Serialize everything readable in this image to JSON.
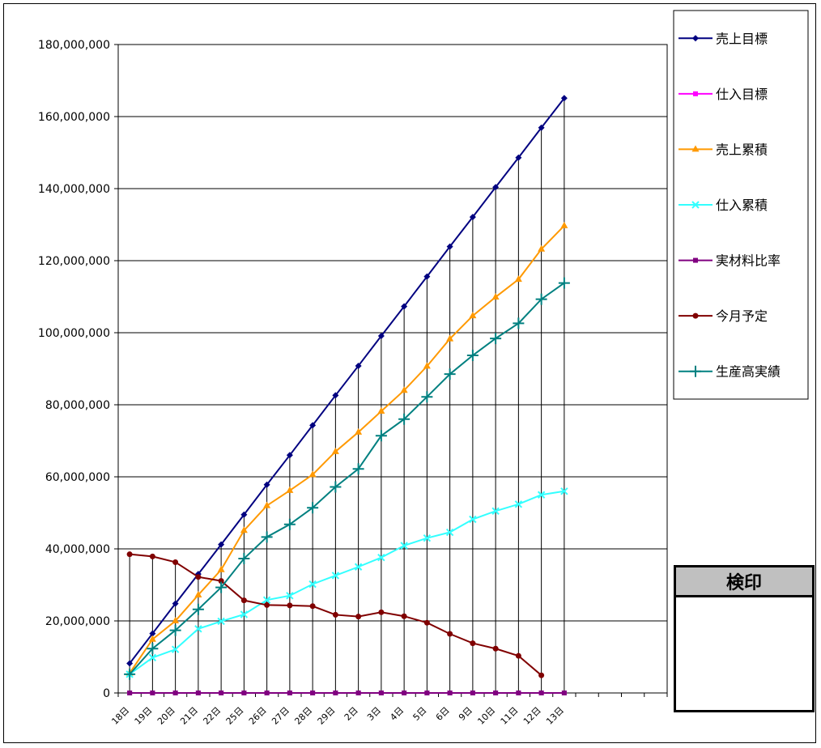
{
  "chart_data": {
    "type": "line",
    "categories": [
      "18日",
      "19日",
      "20日",
      "21日",
      "22日",
      "25日",
      "26日",
      "27日",
      "28日",
      "29日",
      "2日",
      "3日",
      "4日",
      "5日",
      "6日",
      "9日",
      "10日",
      "11日",
      "12日",
      "13日"
    ],
    "y_ticks": [
      "0",
      "20,000,000",
      "40,000,000",
      "60,000,000",
      "80,000,000",
      "100,000,000",
      "120,000,000",
      "140,000,000",
      "160,000,000",
      "180,000,000"
    ],
    "ylim": [
      0,
      180000000
    ],
    "grid": true,
    "legend_position": "right",
    "series": [
      {
        "name": "売上目標",
        "color": "#000080",
        "marker": "diamond",
        "values": [
          8200000,
          16500000,
          24800000,
          33000000,
          41200000,
          49500000,
          57800000,
          66000000,
          74300000,
          82600000,
          90800000,
          99100000,
          107300000,
          115600000,
          123900000,
          132100000,
          140400000,
          148600000,
          156900000,
          165100000
        ]
      },
      {
        "name": "仕入目標",
        "color": "#ff00ff",
        "marker": "square",
        "values": [
          0,
          0,
          0,
          0,
          0,
          0,
          0,
          0,
          0,
          0,
          0,
          0,
          0,
          0,
          0,
          0,
          0,
          0,
          0,
          0
        ]
      },
      {
        "name": "売上累積",
        "color": "#ff9900",
        "marker": "triangle",
        "values": [
          5500000,
          14900000,
          20000000,
          27200000,
          34200000,
          45100000,
          52000000,
          56200000,
          60600000,
          67000000,
          72400000,
          78200000,
          84000000,
          90700000,
          98300000,
          104700000,
          109900000,
          114800000,
          123200000,
          129700000
        ]
      },
      {
        "name": "仕入累積",
        "color": "#33ffff",
        "marker": "x",
        "values": [
          5200000,
          9800000,
          12100000,
          17800000,
          19900000,
          21800000,
          25800000,
          27000000,
          30200000,
          32600000,
          35000000,
          37600000,
          40900000,
          43000000,
          44600000,
          48200000,
          50500000,
          52400000,
          55000000,
          56000000
        ]
      },
      {
        "name": "実材料比率",
        "color": "#800080",
        "marker": "square",
        "values": [
          0,
          0,
          0,
          0,
          0,
          0,
          0,
          0,
          0,
          0,
          0,
          0,
          0,
          0,
          0,
          0,
          0,
          0,
          0,
          0
        ]
      },
      {
        "name": "今月予定",
        "color": "#800000",
        "marker": "circle",
        "values": [
          38500000,
          37900000,
          36300000,
          32200000,
          31100000,
          25700000,
          24400000,
          24300000,
          24100000,
          21700000,
          21200000,
          22400000,
          21300000,
          19500000,
          16400000,
          13800000,
          12300000,
          10300000,
          4900000,
          null
        ]
      },
      {
        "name": "生産高実績",
        "color": "#008080",
        "marker": "plus",
        "values": [
          5200000,
          12300000,
          17400000,
          23200000,
          29300000,
          37300000,
          43300000,
          46800000,
          51400000,
          57200000,
          62200000,
          71400000,
          76000000,
          82200000,
          88500000,
          93700000,
          98400000,
          102600000,
          109300000,
          113800000
        ]
      }
    ]
  },
  "stamp": {
    "label": "検印"
  }
}
